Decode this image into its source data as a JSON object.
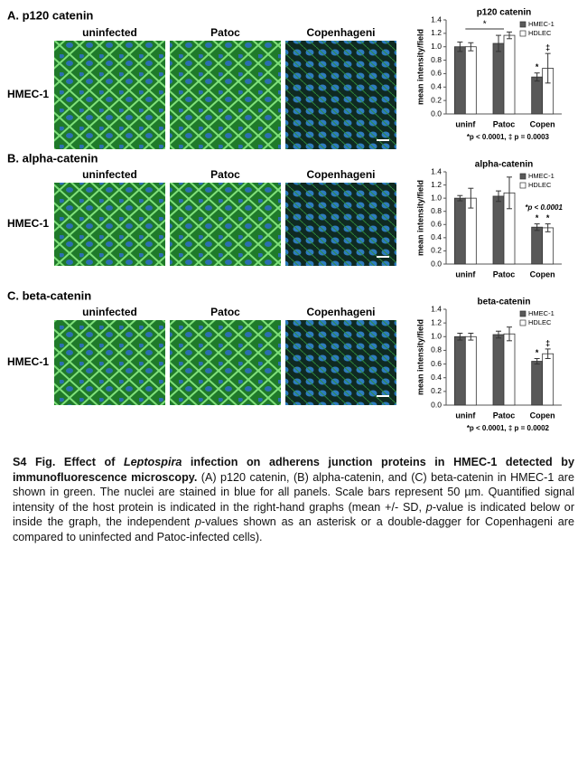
{
  "panels": [
    {
      "label": "A. p120 catenin",
      "row_label": "HMEC-1",
      "columns": [
        "uninfected",
        "Patoc",
        "Copenhageni"
      ]
    },
    {
      "label": "B. alpha-catenin",
      "row_label": "HMEC-1",
      "columns": [
        "uninfected",
        "Patoc",
        "Copenhageni"
      ]
    },
    {
      "label": "C. beta-catenin",
      "row_label": "HMEC-1",
      "columns": [
        "uninfected",
        "Patoc",
        "Copenhageni"
      ]
    }
  ],
  "chart_data": [
    {
      "type": "bar",
      "title": "p120 catenin",
      "y_label": "mean intensity/field",
      "categories": [
        "uninf",
        "Patoc",
        "Copen"
      ],
      "series": [
        {
          "name": "HMEC-1",
          "color": "#595959",
          "values": [
            1.0,
            1.05,
            0.55
          ],
          "errors": [
            0.07,
            0.12,
            0.06
          ],
          "markers": [
            null,
            null,
            "*"
          ]
        },
        {
          "name": "HDLEC",
          "color": "#ffffff",
          "values": [
            1.0,
            1.17,
            0.68
          ],
          "errors": [
            0.06,
            0.05,
            0.22
          ],
          "markers": [
            null,
            null,
            "‡"
          ]
        }
      ],
      "significance": "*",
      "footnote": "*p < 0.0001, ‡ p = 0.0003",
      "ylim": [
        0,
        1.4
      ],
      "yticks": [
        {
          "value": 0,
          "label": "0.0"
        },
        0.2,
        0.4,
        0.6,
        0.8,
        {
          "value": 1,
          "label": "1.0"
        },
        1.2,
        1.4
      ]
    },
    {
      "type": "bar",
      "title": "alpha-catenin",
      "y_label": "mean intensity/field",
      "categories": [
        "uninf",
        "Patoc",
        "Copen"
      ],
      "series": [
        {
          "name": "HMEC-1",
          "color": "#595959",
          "values": [
            1.0,
            1.03,
            0.56
          ],
          "errors": [
            0.04,
            0.08,
            0.05
          ],
          "markers": [
            null,
            null,
            "*"
          ]
        },
        {
          "name": "HDLEC",
          "color": "#ffffff",
          "values": [
            1.0,
            1.08,
            0.55
          ],
          "errors": [
            0.15,
            0.24,
            0.06
          ],
          "markers": [
            null,
            null,
            "*"
          ]
        }
      ],
      "annotation": "*p < 0.0001",
      "ylim": [
        0,
        1.4
      ],
      "yticks": [
        {
          "value": 0,
          "label": "0.0"
        },
        0.2,
        0.4,
        0.6,
        0.8,
        {
          "value": 1,
          "label": "1.0"
        },
        1.2,
        1.4
      ]
    },
    {
      "type": "bar",
      "title": "beta-catenin",
      "y_label": "mean intensity/field",
      "categories": [
        "uninf",
        "Patoc",
        "Copen"
      ],
      "series": [
        {
          "name": "HMEC-1",
          "color": "#595959",
          "values": [
            1.0,
            1.03,
            0.64
          ],
          "errors": [
            0.05,
            0.05,
            0.04
          ],
          "markers": [
            null,
            null,
            "*"
          ]
        },
        {
          "name": "HDLEC",
          "color": "#ffffff",
          "values": [
            1.0,
            1.04,
            0.75
          ],
          "errors": [
            0.05,
            0.1,
            0.07
          ],
          "markers": [
            null,
            null,
            "‡"
          ]
        }
      ],
      "footnote": "*p < 0.0001, ‡ p = 0.0002",
      "ylim": [
        0,
        1.4
      ],
      "yticks": [
        {
          "value": 0,
          "label": "0.0"
        },
        0.2,
        0.4,
        0.6,
        0.8,
        {
          "value": 1,
          "label": "1.0"
        },
        1.2,
        1.4
      ]
    }
  ],
  "caption": {
    "parts": [
      "S4 Fig. Effect of ",
      "Leptospira",
      " infection on adherens junction proteins in HMEC-1 detected by immunofluorescence microscopy.",
      " (A) p120 catenin, (B) alpha-catenin, and (C) beta-catenin in HMEC-1 are shown in green. The nuclei are stained in blue for all panels. Scale bars represent 50 µm. Quantified signal intensity of the host protein is indicated in the right-hand graphs (mean +/- SD, ",
      "p",
      "-value is indicated below or inside the graph, the independent ",
      "p",
      "-values shown as an asterisk or a double-dagger for Copenhageni are compared to uninfected and Patoc-infected cells)."
    ]
  }
}
